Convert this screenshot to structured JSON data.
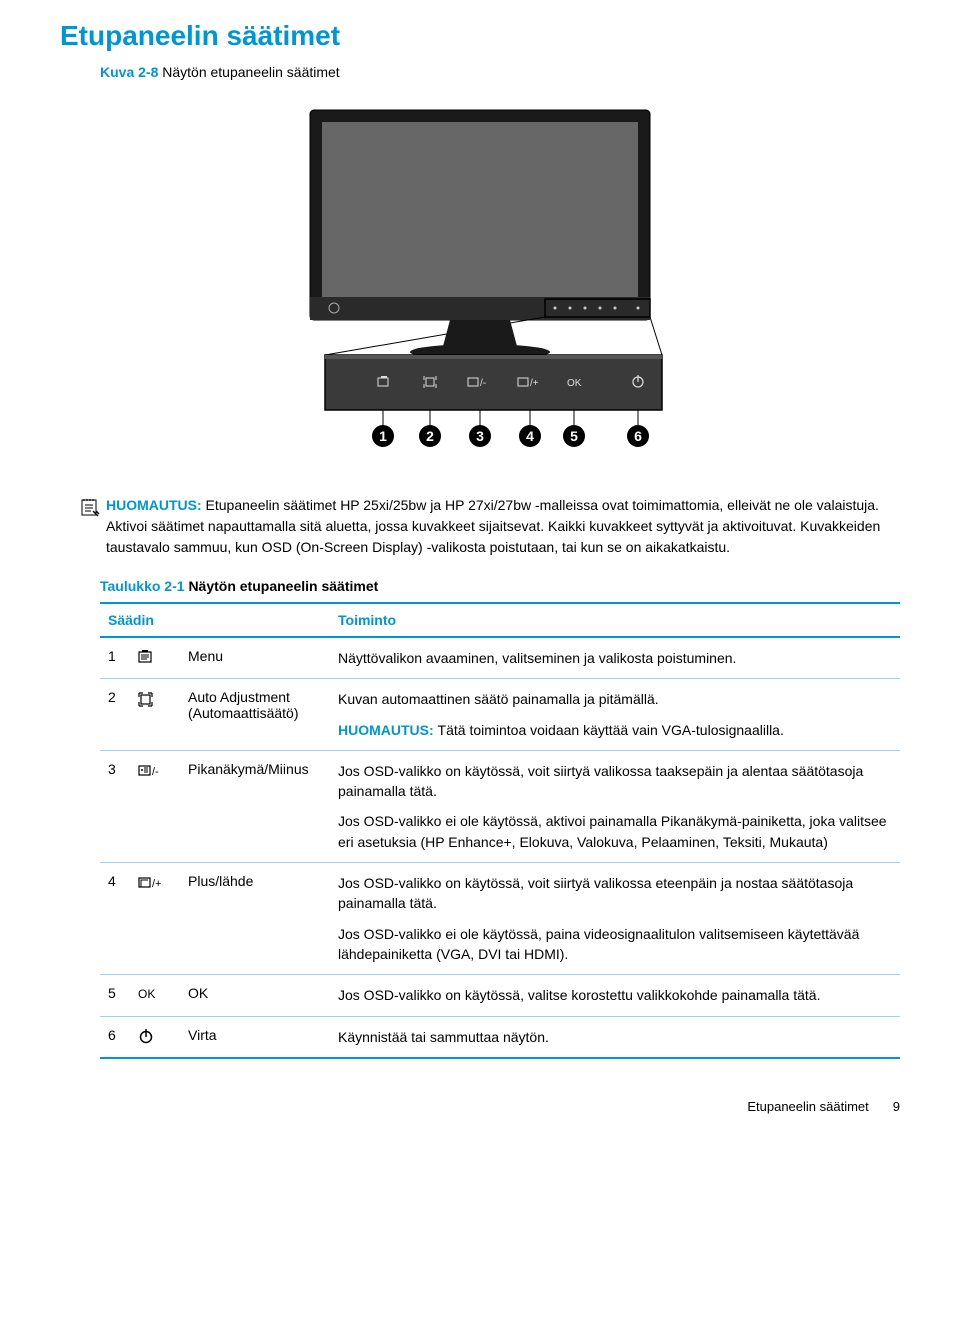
{
  "page": {
    "title": "Etupaneelin säätimet",
    "figure_caption_num": "Kuva 2-8",
    "figure_caption_text": "Näytön etupaneelin säätimet",
    "note_label": "HUOMAUTUS:",
    "note_text": "Etupaneelin säätimet HP 25xi/25bw ja HP 27xi/27bw -malleissa ovat toimimattomia, elleivät ne ole valaistuja. Aktivoi säätimet napauttamalla sitä aluetta, jossa kuvakkeet sijaitsevat. Kaikki kuvakkeet syttyvät ja aktivoituvat. Kuvakkeiden taustavalo sammuu, kun OSD (On-Screen Display) -valikosta poistutaan, tai kun se on aikakatkaistu.",
    "table_caption_num": "Taulukko 2-1",
    "table_caption_text": "Näytön etupaneelin säätimet",
    "footer_title": "Etupaneelin säätimet",
    "footer_page": "9"
  },
  "figure": {
    "callouts": [
      "1",
      "2",
      "3",
      "4",
      "5",
      "6"
    ],
    "panel_labels": {
      "btn3": "/-",
      "btn4": "/+",
      "ok": "OK"
    }
  },
  "table": {
    "headers": {
      "control": "Säädin",
      "function": "Toiminto"
    },
    "rows": [
      {
        "num": "1",
        "icon": "menu",
        "name": "Menu",
        "paras": [
          "Näyttövalikon avaaminen, valitseminen ja valikosta poistuminen."
        ]
      },
      {
        "num": "2",
        "icon": "auto",
        "name": "Auto Adjustment (Automaattisäätö)",
        "paras": [
          "Kuvan automaattinen säätö painamalla ja pitämällä.",
          "__NOTE__Tätä toimintoa voidaan käyttää vain VGA-tulosignaalilla."
        ]
      },
      {
        "num": "3",
        "icon": "minus",
        "icon_suffix": "/-",
        "name": "Pikanäkymä/Miinus",
        "paras": [
          "Jos OSD-valikko on käytössä, voit siirtyä valikossa taaksepäin ja alentaa säätötasoja painamalla tätä.",
          "Jos OSD-valikko ei ole käytössä, aktivoi painamalla Pikanäkymä-painiketta, joka valitsee eri asetuksia (HP Enhance+, Elokuva, Valokuva, Pelaaminen, Teksiti, Mukauta)"
        ]
      },
      {
        "num": "4",
        "icon": "plus",
        "icon_suffix": "/+",
        "name": "Plus/lähde",
        "paras": [
          "Jos OSD-valikko on käytössä, voit siirtyä valikossa eteenpäin ja nostaa säätötasoja painamalla tätä.",
          "Jos OSD-valikko ei ole käytössä, paina videosignaalitulon valitsemiseen käytettävää lähdepainiketta (VGA, DVI tai HDMI)."
        ]
      },
      {
        "num": "5",
        "icon": "ok",
        "icon_text": "OK",
        "name": "OK",
        "paras": [
          "Jos OSD-valikko on käytössä, valitse korostettu valikkokohde painamalla tätä."
        ]
      },
      {
        "num": "6",
        "icon": "power",
        "name": "Virta",
        "paras": [
          "Käynnistää tai sammuttaa näytön."
        ]
      }
    ]
  },
  "colors": {
    "accent": "#0096d6",
    "text": "#000000",
    "row_border": "#9bd3ec"
  }
}
